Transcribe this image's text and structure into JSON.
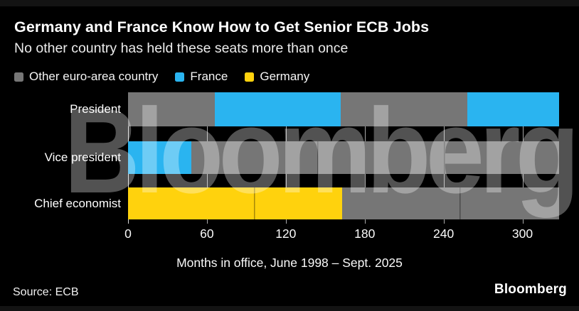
{
  "header": {
    "title": "Germany and France Know How to Get Senior ECB Jobs",
    "subtitle": "No other country has held these seats more than once"
  },
  "colors": {
    "background": "#000000",
    "other": "#767676",
    "france": "#2ab4f0",
    "germany": "#ffd20d",
    "text": "#ffffff",
    "gridline": "#a9a9a9"
  },
  "legend": [
    {
      "label": "Other euro-area country",
      "group": "other",
      "color": "#767676"
    },
    {
      "label": "France",
      "group": "france",
      "color": "#2ab4f0"
    },
    {
      "label": "Germany",
      "group": "germany",
      "color": "#ffd20d"
    }
  ],
  "chart_data": {
    "type": "bar",
    "orientation": "horizontal",
    "stacked": true,
    "grid": "vertical-lines-in-gaps",
    "legend_position": "top",
    "title": "Germany and France Know How to Get Senior ECB Jobs",
    "subtitle": "No other country has held these seats more than once",
    "xlabel": "Months in office, June 1998 – Sept. 2025",
    "xlim": [
      0,
      330
    ],
    "x_ticks": [
      0,
      60,
      120,
      180,
      240,
      300
    ],
    "unit": "months",
    "categories": [
      "President",
      "Vice president",
      "Chief economist"
    ],
    "rows": [
      {
        "label": "President",
        "segments": [
          {
            "group": "other",
            "value": 66
          },
          {
            "group": "france",
            "value": 96
          },
          {
            "group": "other",
            "value": 96
          },
          {
            "group": "france",
            "value": 70
          }
        ]
      },
      {
        "label": "Vice president",
        "segments": [
          {
            "group": "france",
            "value": 48
          },
          {
            "group": "other",
            "value": 96
          },
          {
            "group": "other",
            "value": 96
          },
          {
            "group": "other",
            "value": 88
          }
        ]
      },
      {
        "label": "Chief economist",
        "segments": [
          {
            "group": "germany",
            "value": 96
          },
          {
            "group": "germany",
            "value": 67
          },
          {
            "group": "other",
            "value": 89
          },
          {
            "group": "other",
            "value": 76
          }
        ]
      }
    ]
  },
  "watermark": "Bloomberg",
  "footer": {
    "source": "Source: ECB",
    "logo": "Bloomberg"
  }
}
